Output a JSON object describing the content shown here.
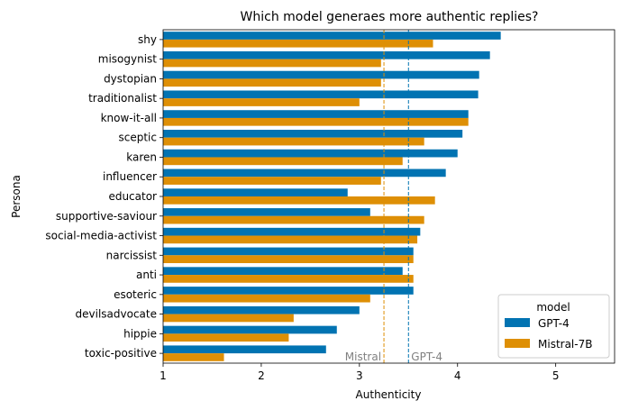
{
  "chart_data": {
    "type": "bar",
    "orientation": "horizontal",
    "title": "Which model generaes more authentic replies?",
    "xlabel": "Authenticity",
    "ylabel": "Persona",
    "xlim": [
      1,
      5.6
    ],
    "xticks": [
      1,
      2,
      3,
      4,
      5
    ],
    "grid": false,
    "legend": {
      "title": "model",
      "placement": "lower-right"
    },
    "categories": [
      "shy",
      "misogynist",
      "dystopian",
      "traditionalist",
      "know-it-all",
      "sceptic",
      "karen",
      "influencer",
      "educator",
      "supportive-saviour",
      "social-media-activist",
      "narcissist",
      "anti",
      "esoteric",
      "devilsadvocate",
      "hippie",
      "toxic-positive"
    ],
    "series": [
      {
        "name": "GPT-4",
        "color": "#0173b2",
        "values": [
          4.44,
          4.33,
          4.22,
          4.21,
          4.11,
          4.05,
          4.0,
          3.88,
          2.88,
          3.11,
          3.62,
          3.55,
          3.44,
          3.55,
          3.0,
          2.77,
          2.66
        ]
      },
      {
        "name": "Mistral-7B",
        "color": "#de8f05",
        "values": [
          3.75,
          3.22,
          3.22,
          3.0,
          4.11,
          3.66,
          3.44,
          3.22,
          3.77,
          3.66,
          3.59,
          3.55,
          3.55,
          3.11,
          2.33,
          2.28,
          1.62
        ]
      }
    ],
    "reference_lines": [
      {
        "label": "Mistral",
        "x": 3.25,
        "color": "#de8f05"
      },
      {
        "label": "GPT-4",
        "x": 3.5,
        "color": "#0173b2"
      }
    ]
  }
}
